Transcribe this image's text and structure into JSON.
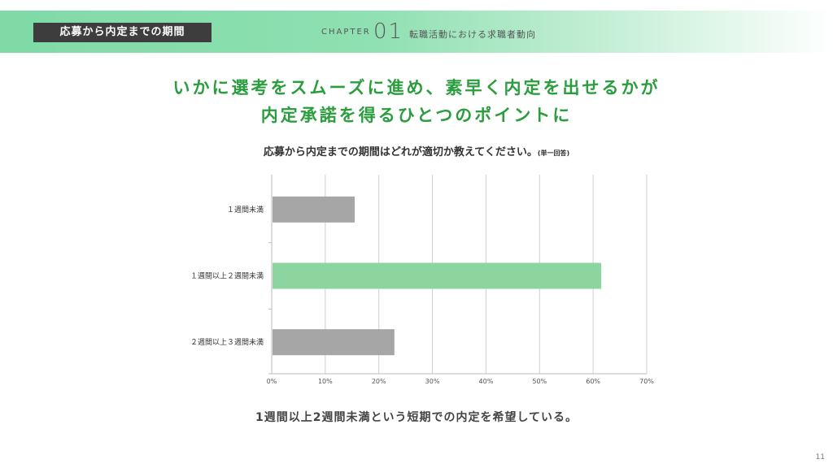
{
  "header": {
    "section_tag": "応募から内定までの期間",
    "chapter_label": "CHAPTER",
    "chapter_number": "01",
    "chapter_title": "転職活動における求職者動向"
  },
  "headline": {
    "line1": "いかに選考をスムーズに進め、素早く内定を出せるかが",
    "line2": "内定承諾を得るひとつのポイントに"
  },
  "question": {
    "text": "応募から内定までの期間はどれが適切か教えてください。",
    "note": "(単一回答)"
  },
  "chart_data": {
    "type": "bar",
    "orientation": "horizontal",
    "categories": [
      "１週間未満",
      "１週間以上２週間未満",
      "２週間以上３週間未満"
    ],
    "values": [
      15.5,
      61.5,
      22.9
    ],
    "colors": [
      "#a6a6a6",
      "#8dd5a0",
      "#a6a6a6"
    ],
    "xlim": [
      0,
      70
    ],
    "xticks": [
      "0%",
      "10%",
      "20%",
      "30%",
      "40%",
      "50%",
      "60%",
      "70%"
    ],
    "grid": true
  },
  "conclusion": "1週間以上2週間未満という短期での内定を希望している。",
  "page_number": "11"
}
